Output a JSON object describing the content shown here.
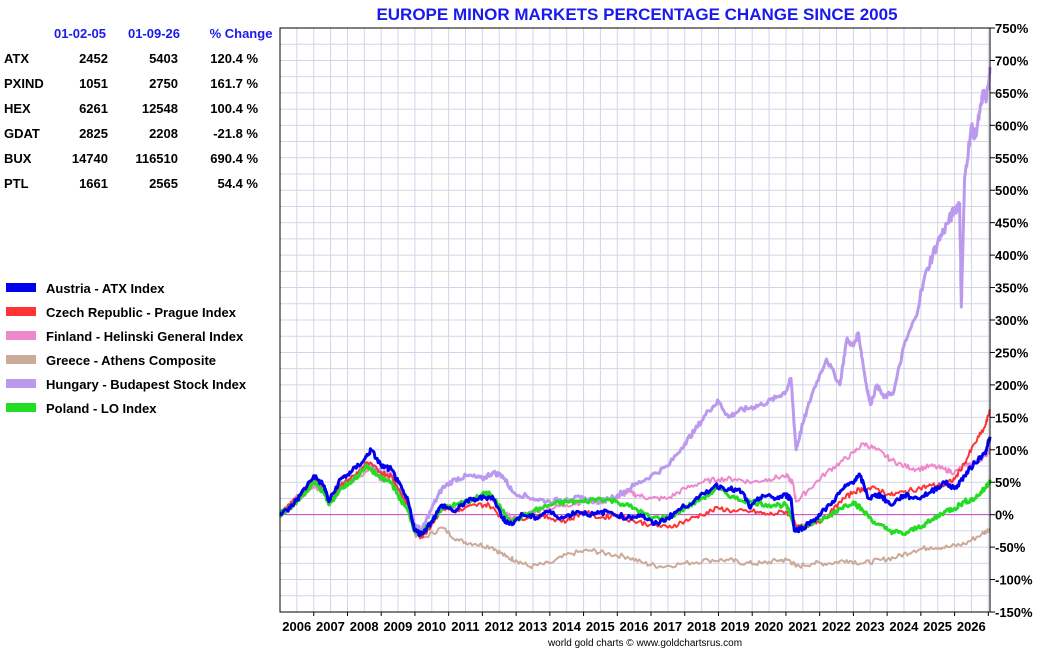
{
  "chart_data": {
    "type": "line",
    "title": "EUROPE MINOR MARKETS PERCENTAGE CHANGE SINCE 2005",
    "credit": "world gold charts © www.goldchartsrus.com",
    "ylim": [
      -150,
      750
    ],
    "yticks": [
      "750%",
      "700%",
      "650%",
      "600%",
      "550%",
      "500%",
      "450%",
      "400%",
      "350%",
      "300%",
      "250%",
      "200%",
      "150%",
      "100%",
      "50%",
      "0%",
      "-50%",
      "-100%",
      "-150%"
    ],
    "ytick_values": [
      750,
      700,
      650,
      600,
      550,
      500,
      450,
      400,
      350,
      300,
      250,
      200,
      150,
      100,
      50,
      0,
      -50,
      -100,
      -150
    ],
    "xlim": [
      2005.0,
      2026.05
    ],
    "xticks": [
      "2006",
      "2007",
      "2008",
      "2009",
      "2010",
      "2011",
      "2012",
      "2013",
      "2014",
      "2015",
      "2016",
      "2017",
      "2018",
      "2019",
      "2020",
      "2021",
      "2022",
      "2023",
      "2024",
      "2025",
      "2026"
    ],
    "grid": true,
    "zero_line_color": "#cc44cc",
    "table": {
      "headers": [
        "01-02-05",
        "01-09-26",
        "% Change"
      ],
      "rows": [
        {
          "ticker": "ATX",
          "start": "2452",
          "end": "5403",
          "change": "120.4 %",
          "color": "#0000ee",
          "change_color": "#008800"
        },
        {
          "ticker": "PXIND",
          "start": "1051",
          "end": "2750",
          "change": "161.7 %",
          "color": "#ff3333",
          "change_color": "#008800"
        },
        {
          "ticker": "HEX",
          "start": "6261",
          "end": "12548",
          "change": "100.4 %",
          "color": "#ee88cc",
          "change_color": "#008800"
        },
        {
          "ticker": "GDAT",
          "start": "2825",
          "end": "2208",
          "change": "-21.8 %",
          "color": "#ccaa99",
          "change_color": "#ff0000"
        },
        {
          "ticker": "BUX",
          "start": "14740",
          "end": "116510",
          "change": "690.4 %",
          "color": "#bb99ee",
          "change_color": "#008800"
        },
        {
          "ticker": "PTL",
          "start": "1661",
          "end": "2565",
          "change": "54.4 %",
          "color": "#22dd22",
          "change_color": "#008800"
        }
      ]
    },
    "series": [
      {
        "name": "Austria - ATX Index",
        "color": "#0000ee",
        "width": 3,
        "x": [
          2005.0,
          2005.3,
          2005.6,
          2006.0,
          2006.3,
          2006.45,
          2006.8,
          2007.1,
          2007.5,
          2007.7,
          2008.0,
          2008.3,
          2008.5,
          2008.8,
          2009.0,
          2009.2,
          2009.5,
          2009.8,
          2010.2,
          2010.5,
          2010.9,
          2011.3,
          2011.6,
          2011.8,
          2012.2,
          2012.6,
          2012.9,
          2013.4,
          2013.8,
          2014.3,
          2014.7,
          2015.3,
          2015.7,
          2016.1,
          2016.5,
          2016.9,
          2017.4,
          2017.9,
          2018.3,
          2018.7,
          2018.95,
          2019.3,
          2019.7,
          2020.0,
          2020.15,
          2020.25,
          2020.5,
          2020.9,
          2021.3,
          2021.7,
          2021.95,
          2022.2,
          2022.45,
          2022.7,
          2022.8,
          2023.1,
          2023.5,
          2023.9,
          2024.3,
          2024.7,
          2025.0,
          2025.3,
          2025.6,
          2025.9,
          2026.05
        ],
        "y": [
          0,
          10,
          30,
          60,
          45,
          20,
          55,
          65,
          85,
          100,
          75,
          70,
          50,
          20,
          -25,
          -30,
          -10,
          15,
          5,
          20,
          25,
          28,
          -5,
          -15,
          0,
          -5,
          5,
          -5,
          5,
          0,
          5,
          -5,
          0,
          -15,
          -5,
          10,
          25,
          45,
          40,
          35,
          10,
          30,
          25,
          30,
          25,
          -25,
          -20,
          -5,
          15,
          40,
          50,
          60,
          25,
          30,
          30,
          15,
          30,
          25,
          35,
          50,
          40,
          60,
          80,
          95,
          120
        ]
      },
      {
        "name": "Czech Republic - Prague Index",
        "color": "#ff3333",
        "width": 2,
        "x": [
          2005.0,
          2005.3,
          2005.6,
          2006.0,
          2006.3,
          2006.45,
          2006.8,
          2007.2,
          2007.6,
          2008.0,
          2008.3,
          2008.5,
          2008.8,
          2009.0,
          2009.2,
          2009.5,
          2009.8,
          2010.3,
          2010.8,
          2011.2,
          2011.6,
          2011.9,
          2012.5,
          2013.0,
          2013.5,
          2014.0,
          2014.5,
          2015.0,
          2015.5,
          2016.0,
          2016.5,
          2017.0,
          2017.5,
          2018.0,
          2018.5,
          2019.0,
          2019.5,
          2020.0,
          2020.2,
          2020.3,
          2020.7,
          2021.2,
          2021.6,
          2022.0,
          2022.3,
          2022.7,
          2023.1,
          2023.5,
          2023.9,
          2024.3,
          2024.7,
          2025.0,
          2025.3,
          2025.6,
          2025.9,
          2026.05
        ],
        "y": [
          0,
          15,
          30,
          55,
          40,
          20,
          45,
          60,
          80,
          65,
          60,
          40,
          15,
          -25,
          -35,
          -15,
          10,
          5,
          15,
          15,
          -5,
          -10,
          0,
          -5,
          -10,
          5,
          -5,
          0,
          -10,
          -15,
          -20,
          -10,
          0,
          10,
          5,
          5,
          0,
          5,
          -5,
          -20,
          -15,
          -5,
          20,
          35,
          40,
          40,
          30,
          35,
          40,
          45,
          45,
          55,
          80,
          110,
          135,
          162
        ]
      },
      {
        "name": "Finland - Helinski General Index",
        "color": "#ee88cc",
        "width": 2,
        "x": [
          2005.0,
          2005.3,
          2005.6,
          2006.0,
          2006.3,
          2006.45,
          2006.8,
          2007.2,
          2007.6,
          2008.0,
          2008.3,
          2008.5,
          2008.8,
          2009.0,
          2009.2,
          2009.5,
          2009.8,
          2010.3,
          2010.8,
          2011.2,
          2011.6,
          2011.9,
          2012.5,
          2013.0,
          2013.5,
          2014.0,
          2014.5,
          2015.0,
          2015.3,
          2015.6,
          2016.0,
          2016.5,
          2017.0,
          2017.5,
          2018.0,
          2018.5,
          2019.0,
          2019.5,
          2020.0,
          2020.2,
          2020.3,
          2020.7,
          2021.2,
          2021.6,
          2022.0,
          2022.3,
          2022.7,
          2023.1,
          2023.5,
          2023.9,
          2024.3,
          2024.7,
          2025.0,
          2025.3,
          2025.6,
          2025.9,
          2026.05
        ],
        "y": [
          0,
          10,
          25,
          45,
          35,
          15,
          40,
          55,
          75,
          55,
          50,
          35,
          15,
          -25,
          -30,
          -10,
          10,
          10,
          25,
          25,
          5,
          -5,
          5,
          10,
          15,
          20,
          20,
          25,
          35,
          30,
          25,
          25,
          40,
          50,
          55,
          55,
          50,
          55,
          60,
          50,
          20,
          40,
          65,
          80,
          95,
          110,
          100,
          85,
          75,
          70,
          75,
          70,
          65,
          75,
          80,
          90,
          100
        ]
      },
      {
        "name": "Greece - Athens Composite",
        "color": "#ccaa99",
        "width": 2,
        "x": [
          2005.0,
          2005.5,
          2006.0,
          2006.3,
          2006.45,
          2006.8,
          2007.3,
          2007.8,
          2008.3,
          2008.8,
          2009.0,
          2009.3,
          2009.8,
          2010.3,
          2010.8,
          2011.3,
          2011.7,
          2012.0,
          2012.4,
          2013.0,
          2013.6,
          2014.2,
          2014.7,
          2015.3,
          2015.8,
          2016.3,
          2017.0,
          2017.7,
          2018.3,
          2018.8,
          2019.3,
          2019.8,
          2020.1,
          2020.3,
          2020.8,
          2021.3,
          2021.8,
          2022.3,
          2022.8,
          2023.3,
          2023.8,
          2024.3,
          2024.8,
          2025.3,
          2025.8,
          2026.05
        ],
        "y": [
          0,
          20,
          45,
          35,
          15,
          40,
          60,
          70,
          50,
          20,
          -30,
          -35,
          -20,
          -40,
          -45,
          -50,
          -65,
          -70,
          -80,
          -75,
          -60,
          -55,
          -60,
          -65,
          -75,
          -80,
          -75,
          -70,
          -70,
          -75,
          -75,
          -70,
          -70,
          -80,
          -75,
          -75,
          -70,
          -75,
          -70,
          -65,
          -55,
          -50,
          -50,
          -45,
          -30,
          -22
        ]
      },
      {
        "name": "Hungary - Budapest Stock Index",
        "color": "#bb99ee",
        "width": 3,
        "x": [
          2005.0,
          2005.3,
          2005.6,
          2006.0,
          2006.3,
          2006.45,
          2006.8,
          2007.2,
          2007.6,
          2008.0,
          2008.3,
          2008.5,
          2008.8,
          2009.0,
          2009.2,
          2009.5,
          2009.8,
          2010.2,
          2010.6,
          2011.0,
          2011.3,
          2011.6,
          2011.9,
          2012.5,
          2013.0,
          2013.5,
          2014.0,
          2014.5,
          2015.0,
          2015.5,
          2016.0,
          2016.5,
          2017.0,
          2017.3,
          2017.7,
          2018.0,
          2018.3,
          2018.6,
          2018.95,
          2019.3,
          2019.7,
          2020.0,
          2020.15,
          2020.3,
          2020.5,
          2020.8,
          2021.2,
          2021.6,
          2021.8,
          2022.0,
          2022.15,
          2022.35,
          2022.5,
          2022.7,
          2022.9,
          2023.2,
          2023.5,
          2023.8,
          2024.2,
          2024.5,
          2024.8,
          2025.0,
          2025.15,
          2025.2,
          2025.3,
          2025.5,
          2025.6,
          2025.75,
          2025.85,
          2025.95,
          2026.05
        ],
        "y": [
          0,
          15,
          30,
          55,
          40,
          20,
          45,
          60,
          80,
          65,
          60,
          40,
          15,
          -15,
          -25,
          10,
          40,
          55,
          60,
          55,
          65,
          60,
          35,
          25,
          20,
          25,
          25,
          20,
          30,
          45,
          60,
          75,
          110,
          130,
          160,
          175,
          150,
          160,
          165,
          170,
          180,
          190,
          210,
          100,
          140,
          190,
          240,
          200,
          270,
          260,
          280,
          210,
          170,
          200,
          180,
          190,
          260,
          300,
          380,
          420,
          450,
          470,
          480,
          320,
          520,
          600,
          580,
          620,
          650,
          640,
          690
        ]
      },
      {
        "name": "Poland - LO Index",
        "color": "#22dd22",
        "width": 3,
        "x": [
          2005.0,
          2005.3,
          2005.6,
          2006.0,
          2006.3,
          2006.45,
          2006.8,
          2007.2,
          2007.6,
          2008.0,
          2008.3,
          2008.5,
          2008.8,
          2009.0,
          2009.2,
          2009.5,
          2009.8,
          2010.2,
          2010.8,
          2011.2,
          2011.6,
          2011.9,
          2012.5,
          2013.0,
          2013.5,
          2014.0,
          2014.5,
          2015.0,
          2015.5,
          2016.0,
          2016.5,
          2017.0,
          2017.5,
          2018.0,
          2018.5,
          2019.0,
          2019.5,
          2020.0,
          2020.2,
          2020.3,
          2020.7,
          2021.2,
          2021.6,
          2022.0,
          2022.3,
          2022.7,
          2023.1,
          2023.5,
          2023.9,
          2024.3,
          2024.7,
          2025.0,
          2025.3,
          2025.6,
          2025.9,
          2026.05
        ],
        "y": [
          0,
          12,
          25,
          50,
          35,
          15,
          40,
          55,
          75,
          55,
          50,
          30,
          5,
          -25,
          -30,
          -10,
          10,
          15,
          25,
          35,
          5,
          -10,
          5,
          15,
          20,
          20,
          25,
          20,
          10,
          -5,
          -5,
          10,
          25,
          40,
          25,
          20,
          15,
          15,
          -10,
          -25,
          -15,
          -5,
          10,
          20,
          5,
          -15,
          -25,
          -30,
          -20,
          -10,
          5,
          10,
          20,
          25,
          40,
          54
        ]
      }
    ]
  }
}
